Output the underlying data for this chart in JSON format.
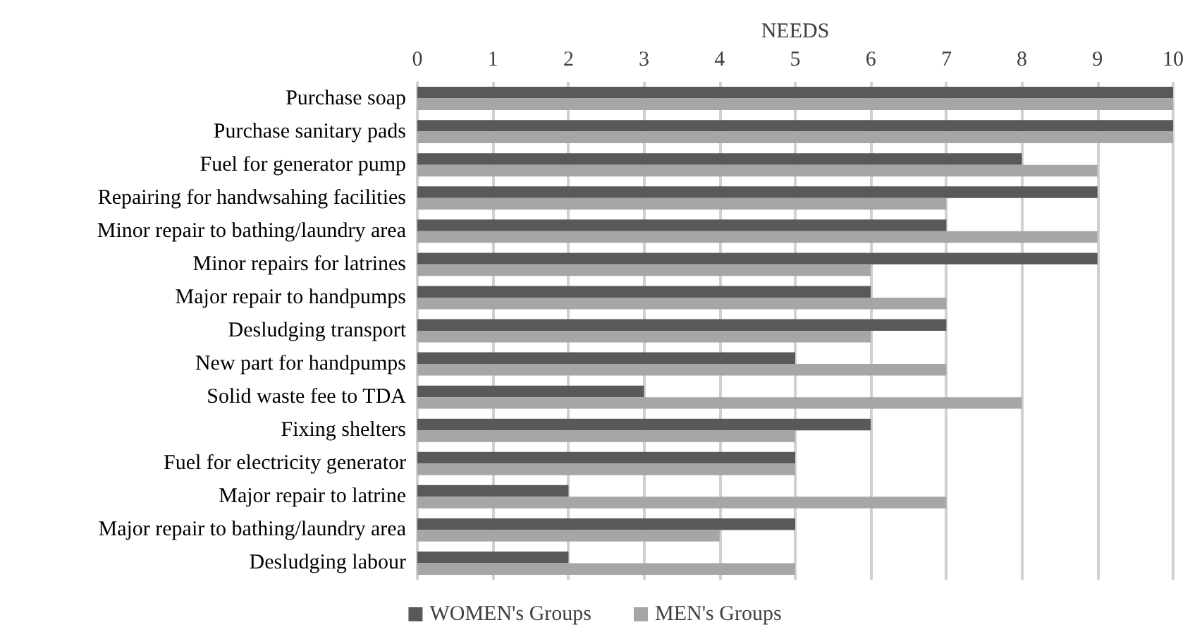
{
  "chart_data": {
    "type": "bar",
    "orientation": "horizontal",
    "xlabel": "NEEDS",
    "categories": [
      "Purchase soap",
      "Purchase sanitary pads",
      "Fuel for generator pump",
      "Repairing for handwsahing facilities",
      "Minor repair to bathing/laundry area",
      "Minor repairs for latrines",
      "Major repair to handpumps",
      "Desludging transport",
      "New part for handpumps",
      "Solid waste fee to TDA",
      "Fixing shelters",
      "Fuel for electricity generator",
      "Major repair to latrine",
      "Major repair to bathing/laundry area",
      "Desludging labour"
    ],
    "series": [
      {
        "name": "WOMEN's Groups",
        "color": "#595959",
        "values": [
          10,
          10,
          8,
          9,
          7,
          9,
          6,
          7,
          5,
          3,
          6,
          5,
          2,
          5,
          2
        ]
      },
      {
        "name": "MEN's Groups",
        "color": "#a6a6a6",
        "values": [
          10,
          10,
          9,
          7,
          9,
          6,
          7,
          6,
          7,
          8,
          5,
          5,
          7,
          4,
          5
        ]
      }
    ],
    "xlim": [
      0,
      10
    ],
    "xticks": [
      0,
      1,
      2,
      3,
      4,
      5,
      6,
      7,
      8,
      9,
      10
    ],
    "grid": "x",
    "legend": "bottom"
  }
}
